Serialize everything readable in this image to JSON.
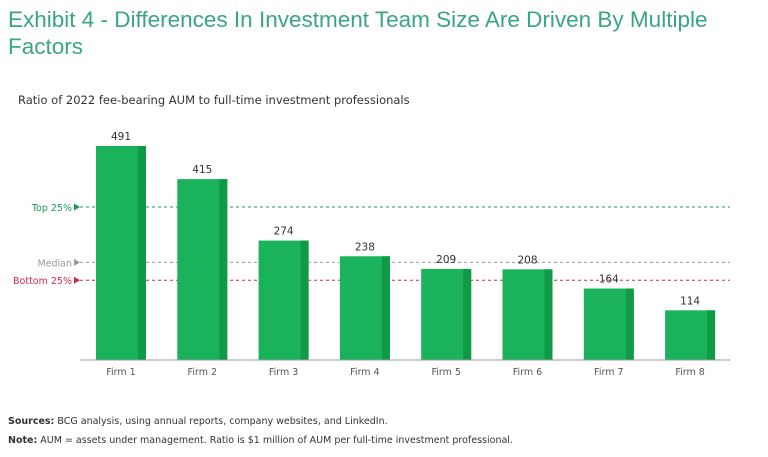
{
  "title": "Exhibit 4 - Differences In Investment Team Size Are Driven By Multiple Factors",
  "chart_data": {
    "type": "bar",
    "subtitle": "Ratio of 2022 fee-bearing AUM to full-time investment professionals",
    "categories": [
      "Firm 1",
      "Firm 2",
      "Firm 3",
      "Firm 4",
      "Firm 5",
      "Firm 6",
      "Firm 7",
      "Firm 8"
    ],
    "values": [
      491,
      415,
      274,
      238,
      209,
      208,
      164,
      114
    ],
    "ylim": [
      0,
      491
    ],
    "reference_lines": [
      {
        "label": "Top 25%",
        "value": 351,
        "color": "#1a9a5a"
      },
      {
        "label": "Median",
        "value": 224,
        "color": "#999999"
      },
      {
        "label": "Bottom 25%",
        "value": 183,
        "color": "#d4284a"
      }
    ],
    "colors": {
      "bar": "#1ab35b",
      "bar_shade": "#0f9a46"
    }
  },
  "footer": {
    "sources_label": "Sources:",
    "sources_text": " BCG analysis, using annual reports, company websites, and LinkedIn.",
    "note_label": "Note:",
    "note_text": " AUM = assets under management. Ratio is $1 million of AUM per full-time investment professional."
  }
}
